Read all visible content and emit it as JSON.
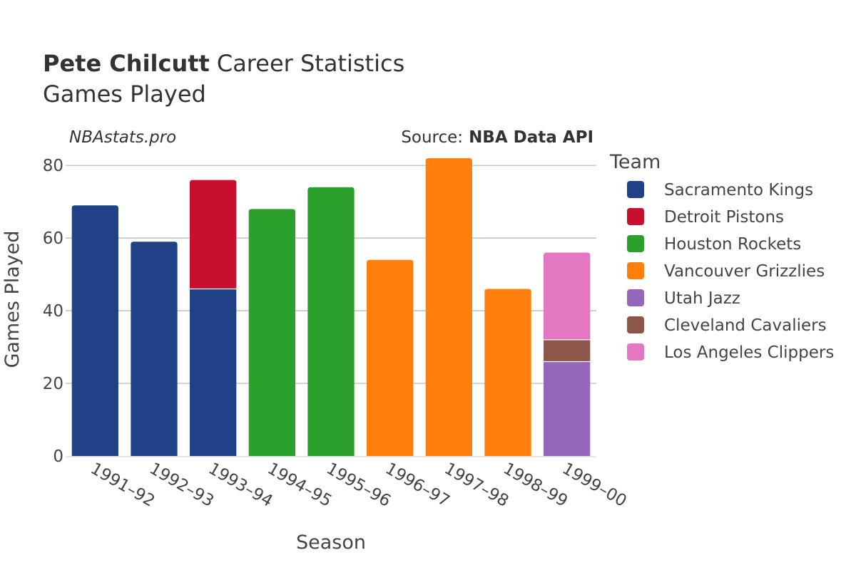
{
  "chart_data": {
    "type": "bar",
    "stacked": true,
    "title_bold": "Pete Chilcutt",
    "title_rest": "Career Statistics",
    "subtitle": "Games Played",
    "site": "NBAstats.pro",
    "source_prefix": "Source:",
    "source_name": "NBA Data API",
    "xlabel": "Season",
    "ylabel": "Games Played",
    "ylim": [
      0,
      82
    ],
    "yticks": [
      0,
      20,
      40,
      60,
      80
    ],
    "grid": true,
    "legend_title": "Team",
    "legend_position": "right",
    "categories": [
      "1991–92",
      "1992–93",
      "1993–94",
      "1994–95",
      "1995–96",
      "1996–97",
      "1997–98",
      "1998–99",
      "1999–00"
    ],
    "series": [
      {
        "name": "Sacramento Kings",
        "color": "#1f4287",
        "values": [
          69,
          59,
          46,
          0,
          0,
          0,
          0,
          0,
          0
        ]
      },
      {
        "name": "Detroit Pistons",
        "color": "#c8102e",
        "values": [
          0,
          0,
          30,
          0,
          0,
          0,
          0,
          0,
          0
        ]
      },
      {
        "name": "Houston Rockets",
        "color": "#2ca02c",
        "values": [
          0,
          0,
          0,
          68,
          74,
          0,
          0,
          0,
          0
        ]
      },
      {
        "name": "Vancouver Grizzlies",
        "color": "#ff7f0e",
        "values": [
          0,
          0,
          0,
          0,
          0,
          54,
          82,
          46,
          0
        ]
      },
      {
        "name": "Utah Jazz",
        "color": "#9467bd",
        "values": [
          0,
          0,
          0,
          0,
          0,
          0,
          0,
          0,
          26
        ]
      },
      {
        "name": "Cleveland Cavaliers",
        "color": "#8c564b",
        "values": [
          0,
          0,
          0,
          0,
          0,
          0,
          0,
          0,
          6
        ]
      },
      {
        "name": "Los Angeles Clippers",
        "color": "#e377c2",
        "values": [
          0,
          0,
          0,
          0,
          0,
          0,
          0,
          0,
          24
        ]
      }
    ]
  }
}
